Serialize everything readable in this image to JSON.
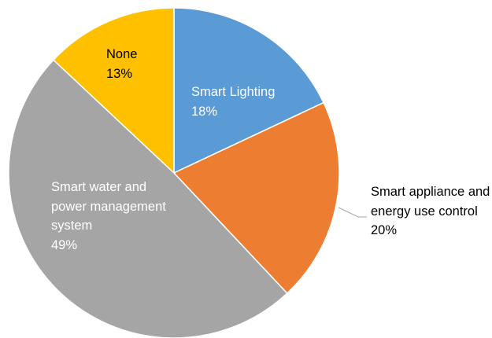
{
  "chart_data": {
    "type": "pie",
    "categories": [
      "Smart Lighting",
      "Smart appliance and energy use control",
      "Smart water and power management system",
      "None"
    ],
    "values": [
      18,
      20,
      49,
      13
    ],
    "value_labels": [
      "18%",
      "20%",
      "49%",
      "13%"
    ],
    "colors": [
      "#5b9bd5",
      "#ed7d31",
      "#a5a5a5",
      "#ffc000"
    ]
  }
}
